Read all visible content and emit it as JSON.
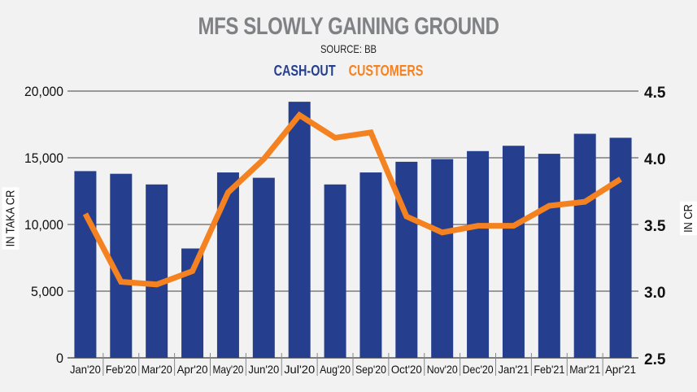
{
  "chart_data": {
    "type": "bar+line",
    "title": "MFS SLOWLY GAINING GROUND",
    "subtitle": "SOURCE: BB",
    "categories": [
      "Jan'20",
      "Feb'20",
      "Mar'20",
      "Apr'20",
      "May'20",
      "Jun'20",
      "Jul'20",
      "Aug'20",
      "Sep'20",
      "Oct'20",
      "Nov'20",
      "Dec'20",
      "Jan'21",
      "Feb'21",
      "Mar'21",
      "Apr'21"
    ],
    "series": [
      {
        "name": "CASH-OUT",
        "type": "bar",
        "axis": "left",
        "color": "#253f8e",
        "values": [
          14000,
          13800,
          13000,
          8200,
          13900,
          13500,
          19200,
          13000,
          13900,
          14700,
          14900,
          15500,
          15900,
          15300,
          16800,
          16500
        ]
      },
      {
        "name": "CUSTOMERS",
        "type": "line",
        "axis": "right",
        "color": "#f58220",
        "values": [
          3.58,
          3.07,
          3.05,
          3.15,
          3.74,
          3.99,
          4.32,
          4.15,
          4.19,
          3.56,
          3.44,
          3.49,
          3.49,
          3.64,
          3.67,
          3.84
        ]
      }
    ],
    "ylabel": "IN TAKA CR",
    "ylabel_right": "IN CR",
    "ylim": [
      0,
      20000
    ],
    "ylim_right": [
      2.5,
      4.5
    ],
    "yticks": [
      "0",
      "5,000",
      "10,000",
      "15,000",
      "20,000"
    ],
    "yticks_right": [
      "2.5",
      "3.0",
      "3.5",
      "4.0",
      "4.5"
    ],
    "grid": true,
    "legend": "top-center"
  }
}
